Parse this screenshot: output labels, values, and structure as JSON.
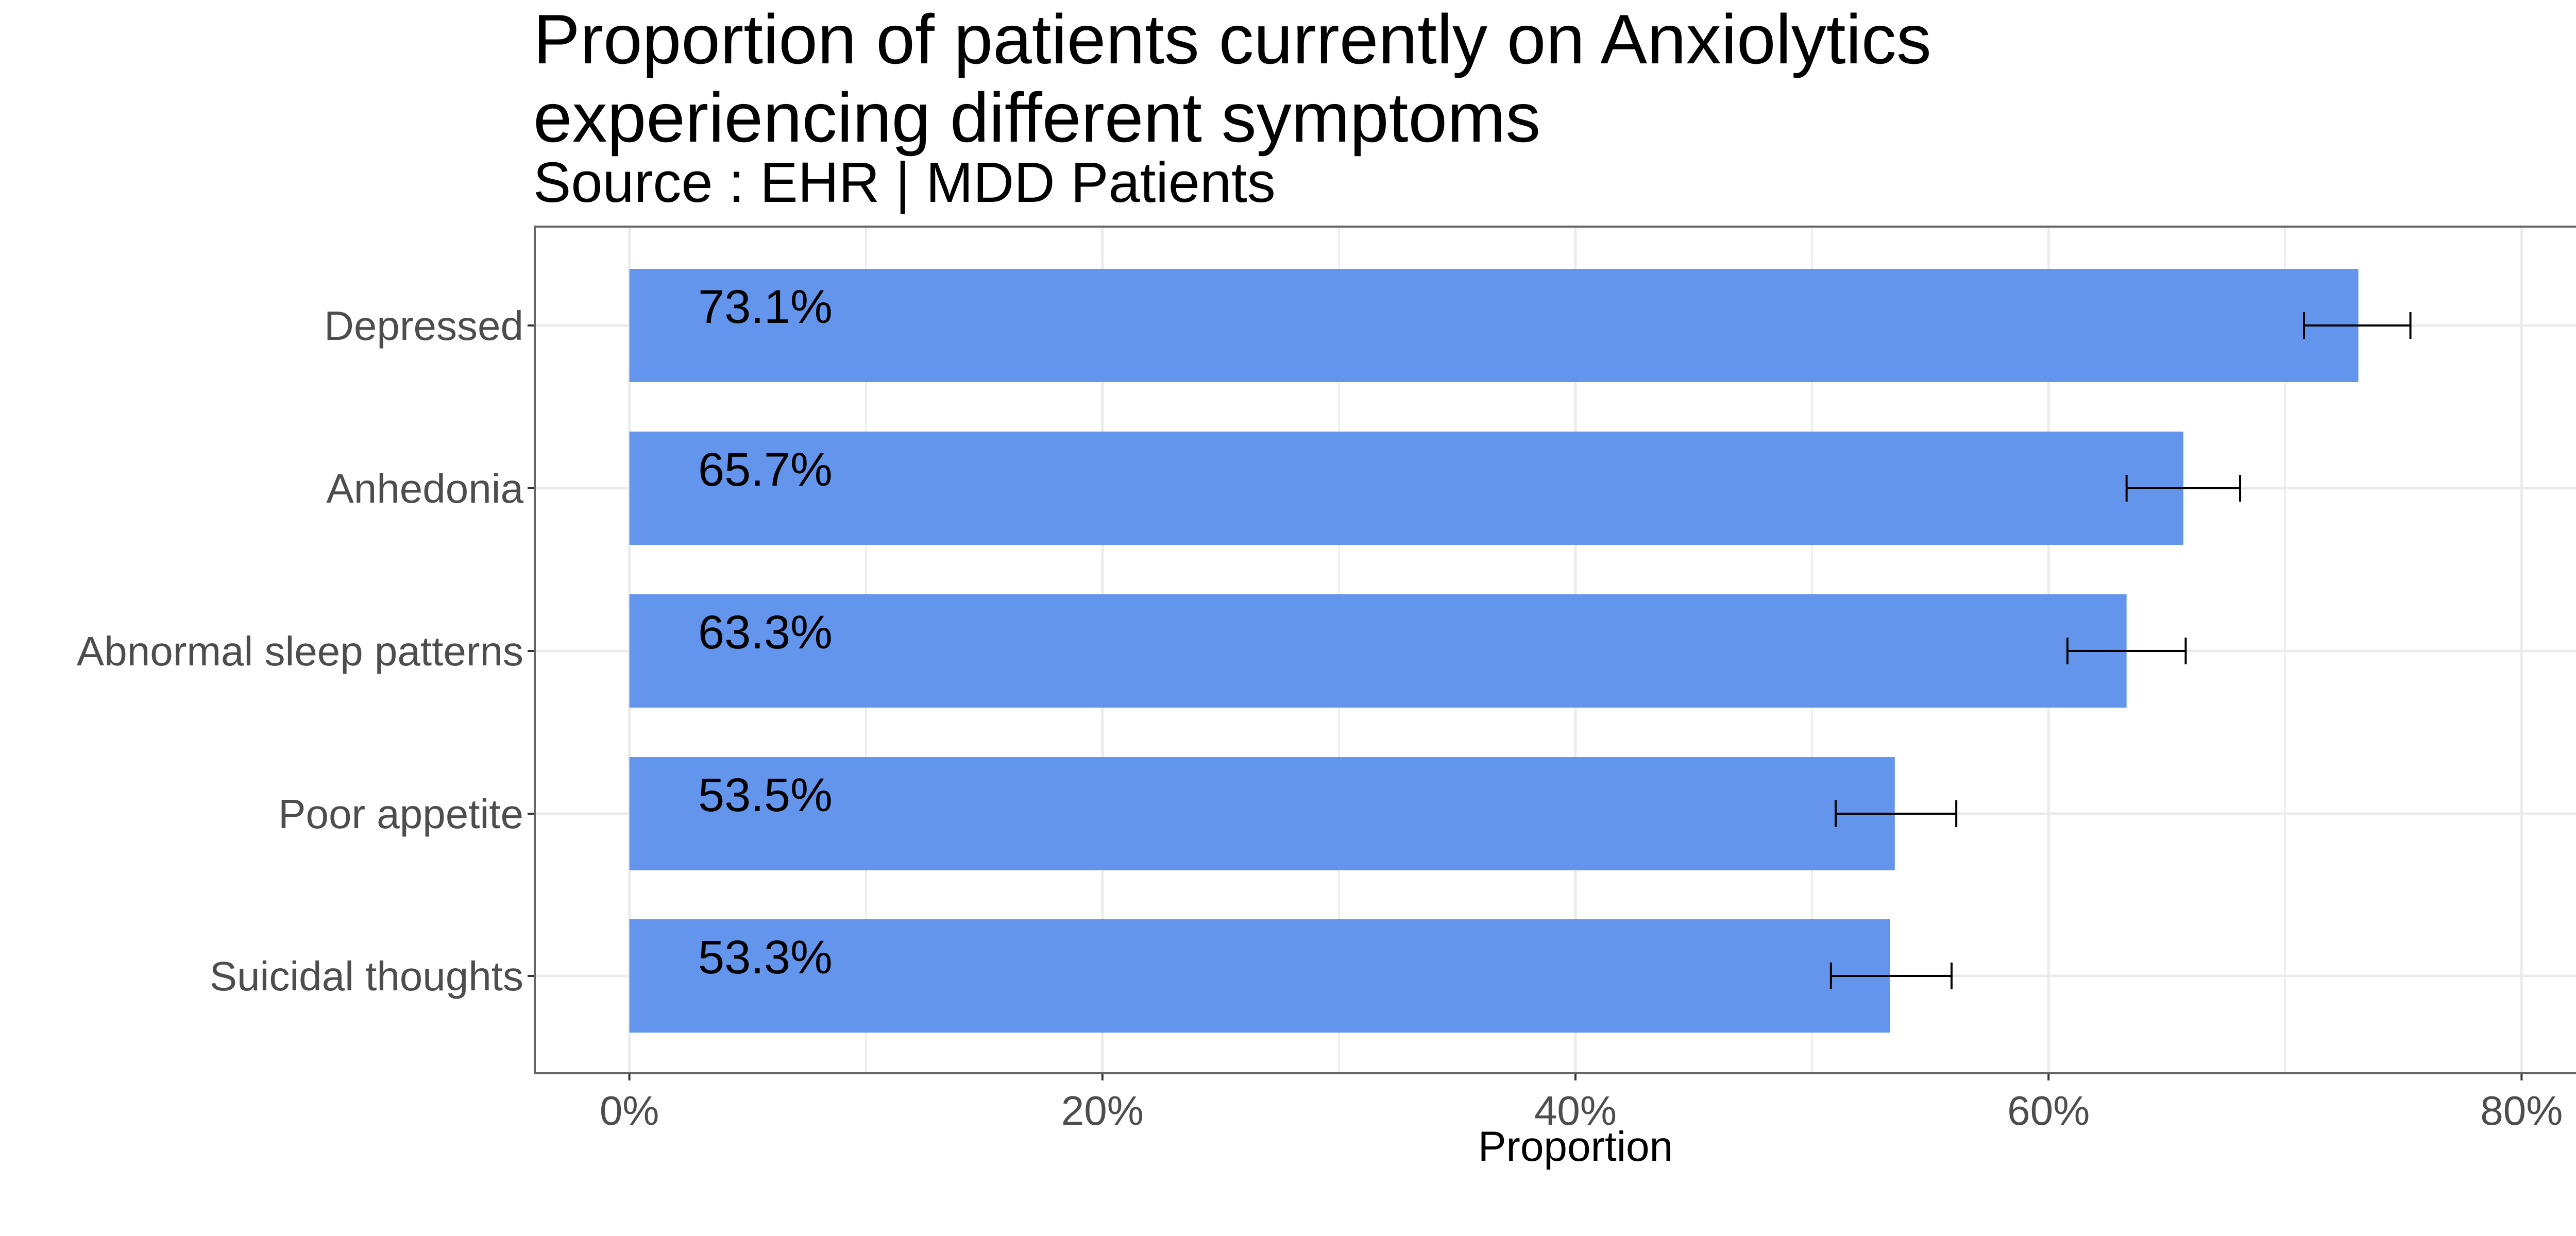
{
  "chart_data": {
    "type": "bar",
    "orientation": "horizontal",
    "title_lines": [
      "Proportion of patients currently on Anxiolytics",
      "experiencing different symptoms"
    ],
    "subtitle": "Source : EHR | MDD Patients",
    "xlabel": "Proportion",
    "ylabel": "",
    "categories": [
      "Depressed",
      "Anhedonia",
      "Abnormal sleep patterns",
      "Poor appetite",
      "Suicidal thoughts"
    ],
    "values": [
      73.1,
      65.7,
      63.3,
      53.5,
      53.3
    ],
    "data_labels": [
      "73.1%",
      "65.7%",
      "63.3%",
      "53.5%",
      "53.3%"
    ],
    "error_low": [
      70.8,
      63.3,
      60.8,
      51.0,
      50.8
    ],
    "error_high": [
      75.3,
      68.1,
      65.8,
      56.1,
      55.9
    ],
    "xlim": [
      -4,
      84
    ],
    "x_ticks": [
      0,
      20,
      40,
      60,
      80
    ],
    "x_tick_labels": [
      "0%",
      "20%",
      "40%",
      "60%",
      "80%"
    ],
    "grid": true,
    "legend": "none",
    "colors": {
      "bar": "#6495ED",
      "error_bar": "#000000",
      "grid": "#ebebeb",
      "panel_border": "#666666"
    }
  }
}
